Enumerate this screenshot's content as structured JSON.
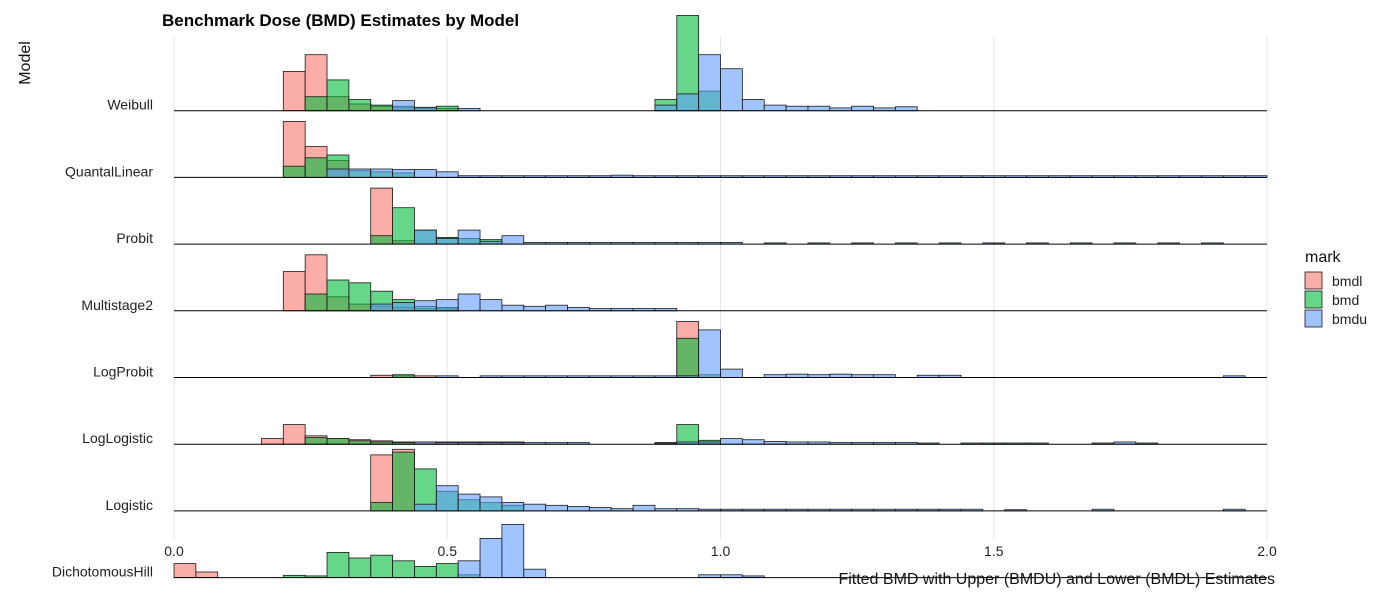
{
  "chart_data": {
    "type": "ridgeline-histogram",
    "title": "Benchmark Dose (BMD) Estimates by Model",
    "xlabel": "Fitted BMD with Upper (BMDU) and Lower (BMDL) Estimates",
    "ylabel": "Model",
    "xlim": [
      0.0,
      2.0
    ],
    "x_ticks": [
      "0.0",
      "0.5",
      "1.0",
      "1.5",
      "2.0"
    ],
    "x_tick_values": [
      0.0,
      0.5,
      1.0,
      1.5,
      2.0
    ],
    "grid": true,
    "legend": {
      "title": "mark",
      "placement": "right",
      "entries": [
        {
          "key": "bmdl",
          "label": "bmdl",
          "color": "#F8766D"
        },
        {
          "key": "bmd",
          "label": "bmd",
          "color": "#00BA38"
        },
        {
          "key": "bmdu",
          "label": "bmdu",
          "color": "#619CFF"
        }
      ]
    },
    "bin_width": 0.04,
    "bin_start": 0.0,
    "categories": [
      "Weibull",
      "QuantalLinear",
      "Probit",
      "Multistage2",
      "LogProbit",
      "LogLogistic",
      "Logistic",
      "DichotomousHill"
    ],
    "series": [
      {
        "model": "Weibull",
        "bmdl": [
          [
            0.2,
            0.7
          ],
          [
            0.24,
            1.0
          ],
          [
            0.28,
            0.25
          ],
          [
            0.32,
            0.12
          ],
          [
            0.36,
            0.08
          ],
          [
            0.4,
            0.06
          ],
          [
            0.44,
            0.04
          ],
          [
            0.48,
            0.04
          ]
        ],
        "bmd": [
          [
            0.24,
            0.25
          ],
          [
            0.28,
            0.55
          ],
          [
            0.32,
            0.2
          ],
          [
            0.36,
            0.1
          ],
          [
            0.4,
            0.08
          ],
          [
            0.44,
            0.06
          ],
          [
            0.48,
            0.08
          ],
          [
            0.88,
            0.2
          ],
          [
            0.92,
            1.7
          ],
          [
            0.96,
            0.35
          ]
        ],
        "bmdu": [
          [
            0.4,
            0.18
          ],
          [
            0.44,
            0.06
          ],
          [
            0.52,
            0.04
          ],
          [
            0.88,
            0.1
          ],
          [
            0.92,
            0.3
          ],
          [
            0.96,
            1.0
          ],
          [
            1.0,
            0.75
          ],
          [
            1.04,
            0.2
          ],
          [
            1.08,
            0.1
          ],
          [
            1.12,
            0.08
          ],
          [
            1.16,
            0.08
          ],
          [
            1.2,
            0.05
          ],
          [
            1.24,
            0.08
          ],
          [
            1.28,
            0.05
          ],
          [
            1.32,
            0.07
          ]
        ]
      },
      {
        "model": "QuantalLinear",
        "bmdl": [
          [
            0.2,
            1.0
          ],
          [
            0.24,
            0.55
          ],
          [
            0.28,
            0.3
          ]
        ],
        "bmd": [
          [
            0.2,
            0.2
          ],
          [
            0.24,
            0.35
          ],
          [
            0.28,
            0.4
          ],
          [
            0.32,
            0.12
          ],
          [
            0.36,
            0.1
          ],
          [
            0.4,
            0.08
          ]
        ],
        "bmdu": [
          [
            0.28,
            0.15
          ],
          [
            0.32,
            0.15
          ],
          [
            0.36,
            0.15
          ],
          [
            0.4,
            0.14
          ],
          [
            0.44,
            0.14
          ],
          [
            0.48,
            0.1
          ],
          [
            0.52,
            0.03
          ],
          [
            0.56,
            0.03
          ],
          [
            0.6,
            0.03
          ],
          [
            0.64,
            0.03
          ],
          [
            0.68,
            0.03
          ],
          [
            0.72,
            0.03
          ],
          [
            0.76,
            0.03
          ],
          [
            0.8,
            0.04
          ],
          [
            0.84,
            0.03
          ],
          [
            0.88,
            0.03
          ],
          [
            0.92,
            0.03
          ],
          [
            0.96,
            0.03
          ],
          [
            1.0,
            0.03
          ],
          [
            1.04,
            0.03
          ],
          [
            1.08,
            0.03
          ],
          [
            1.12,
            0.03
          ],
          [
            1.16,
            0.03
          ],
          [
            1.2,
            0.03
          ],
          [
            1.24,
            0.03
          ],
          [
            1.28,
            0.03
          ],
          [
            1.32,
            0.03
          ],
          [
            1.36,
            0.03
          ],
          [
            1.4,
            0.03
          ],
          [
            1.44,
            0.03
          ],
          [
            1.48,
            0.03
          ],
          [
            1.52,
            0.03
          ],
          [
            1.56,
            0.03
          ],
          [
            1.6,
            0.03
          ],
          [
            1.64,
            0.03
          ],
          [
            1.68,
            0.03
          ],
          [
            1.72,
            0.03
          ],
          [
            1.76,
            0.03
          ],
          [
            1.8,
            0.03
          ],
          [
            1.84,
            0.03
          ],
          [
            1.88,
            0.03
          ],
          [
            1.92,
            0.03
          ],
          [
            1.96,
            0.03
          ]
        ]
      },
      {
        "model": "Probit",
        "bmdl": [
          [
            0.36,
            1.0
          ],
          [
            0.4,
            0.06
          ]
        ],
        "bmd": [
          [
            0.36,
            0.15
          ],
          [
            0.4,
            0.65
          ],
          [
            0.44,
            0.25
          ],
          [
            0.48,
            0.12
          ],
          [
            0.52,
            0.1
          ],
          [
            0.56,
            0.08
          ]
        ],
        "bmdu": [
          [
            0.44,
            0.25
          ],
          [
            0.48,
            0.1
          ],
          [
            0.52,
            0.25
          ],
          [
            0.56,
            0.05
          ],
          [
            0.6,
            0.15
          ],
          [
            0.64,
            0.03
          ],
          [
            0.68,
            0.03
          ],
          [
            0.72,
            0.03
          ],
          [
            0.76,
            0.03
          ],
          [
            0.8,
            0.03
          ],
          [
            0.84,
            0.03
          ],
          [
            0.88,
            0.03
          ],
          [
            0.92,
            0.03
          ],
          [
            0.96,
            0.03
          ],
          [
            1.0,
            0.03
          ],
          [
            1.08,
            0.02
          ],
          [
            1.16,
            0.02
          ],
          [
            1.24,
            0.02
          ],
          [
            1.32,
            0.02
          ],
          [
            1.4,
            0.02
          ],
          [
            1.48,
            0.02
          ],
          [
            1.56,
            0.02
          ],
          [
            1.64,
            0.02
          ],
          [
            1.72,
            0.02
          ],
          [
            1.8,
            0.02
          ],
          [
            1.88,
            0.02
          ]
        ]
      },
      {
        "model": "Multistage2",
        "bmdl": [
          [
            0.2,
            0.7
          ],
          [
            0.24,
            1.0
          ],
          [
            0.28,
            0.25
          ],
          [
            0.32,
            0.12
          ],
          [
            0.36,
            0.08
          ],
          [
            0.4,
            0.06
          ],
          [
            0.44,
            0.04
          ],
          [
            0.48,
            0.04
          ]
        ],
        "bmd": [
          [
            0.24,
            0.3
          ],
          [
            0.28,
            0.55
          ],
          [
            0.32,
            0.5
          ],
          [
            0.36,
            0.35
          ],
          [
            0.4,
            0.2
          ],
          [
            0.44,
            0.08
          ],
          [
            0.48,
            0.06
          ]
        ],
        "bmdu": [
          [
            0.36,
            0.12
          ],
          [
            0.4,
            0.15
          ],
          [
            0.44,
            0.18
          ],
          [
            0.48,
            0.2
          ],
          [
            0.52,
            0.3
          ],
          [
            0.56,
            0.2
          ],
          [
            0.6,
            0.1
          ],
          [
            0.64,
            0.08
          ],
          [
            0.68,
            0.1
          ],
          [
            0.72,
            0.06
          ],
          [
            0.76,
            0.04
          ],
          [
            0.8,
            0.04
          ],
          [
            0.84,
            0.04
          ],
          [
            0.88,
            0.04
          ]
        ]
      },
      {
        "model": "LogProbit",
        "bmdl": [
          [
            0.36,
            0.04
          ],
          [
            0.4,
            0.03
          ],
          [
            0.44,
            0.03
          ],
          [
            0.92,
            1.0
          ]
        ],
        "bmd": [
          [
            0.4,
            0.05
          ],
          [
            0.92,
            0.7
          ],
          [
            0.96,
            0.05
          ]
        ],
        "bmdu": [
          [
            0.48,
            0.03
          ],
          [
            0.56,
            0.03
          ],
          [
            0.6,
            0.03
          ],
          [
            0.64,
            0.03
          ],
          [
            0.68,
            0.03
          ],
          [
            0.72,
            0.03
          ],
          [
            0.76,
            0.03
          ],
          [
            0.8,
            0.03
          ],
          [
            0.84,
            0.03
          ],
          [
            0.88,
            0.03
          ],
          [
            0.92,
            0.03
          ],
          [
            0.96,
            0.85
          ],
          [
            1.0,
            0.15
          ],
          [
            1.08,
            0.05
          ],
          [
            1.12,
            0.06
          ],
          [
            1.16,
            0.05
          ],
          [
            1.2,
            0.06
          ],
          [
            1.24,
            0.05
          ],
          [
            1.28,
            0.05
          ],
          [
            1.36,
            0.04
          ],
          [
            1.4,
            0.04
          ],
          [
            1.92,
            0.03
          ]
        ]
      },
      {
        "model": "LogLogistic",
        "bmdl": [
          [
            0.16,
            0.1
          ],
          [
            0.2,
            0.35
          ],
          [
            0.24,
            0.15
          ],
          [
            0.28,
            0.1
          ],
          [
            0.32,
            0.08
          ],
          [
            0.36,
            0.06
          ],
          [
            0.4,
            0.04
          ],
          [
            0.44,
            0.04
          ],
          [
            0.48,
            0.04
          ],
          [
            0.52,
            0.04
          ],
          [
            0.56,
            0.04
          ],
          [
            0.6,
            0.04
          ]
        ],
        "bmd": [
          [
            0.24,
            0.12
          ],
          [
            0.28,
            0.1
          ],
          [
            0.32,
            0.06
          ],
          [
            0.36,
            0.04
          ],
          [
            0.4,
            0.03
          ],
          [
            0.88,
            0.03
          ],
          [
            0.92,
            0.35
          ],
          [
            0.96,
            0.07
          ]
        ],
        "bmdu": [
          [
            0.44,
            0.04
          ],
          [
            0.48,
            0.03
          ],
          [
            0.52,
            0.03
          ],
          [
            0.56,
            0.03
          ],
          [
            0.6,
            0.03
          ],
          [
            0.64,
            0.03
          ],
          [
            0.68,
            0.03
          ],
          [
            0.72,
            0.03
          ],
          [
            0.88,
            0.02
          ],
          [
            0.92,
            0.04
          ],
          [
            0.96,
            0.04
          ],
          [
            1.0,
            0.1
          ],
          [
            1.04,
            0.08
          ],
          [
            1.08,
            0.05
          ],
          [
            1.12,
            0.04
          ],
          [
            1.16,
            0.04
          ],
          [
            1.2,
            0.03
          ],
          [
            1.24,
            0.03
          ],
          [
            1.28,
            0.03
          ],
          [
            1.32,
            0.03
          ],
          [
            1.36,
            0.02
          ],
          [
            1.44,
            0.02
          ],
          [
            1.48,
            0.02
          ],
          [
            1.52,
            0.02
          ],
          [
            1.56,
            0.02
          ],
          [
            1.68,
            0.02
          ],
          [
            1.72,
            0.04
          ],
          [
            1.76,
            0.02
          ]
        ]
      },
      {
        "model": "Logistic",
        "bmdl": [
          [
            0.36,
            1.0
          ],
          [
            0.4,
            1.1
          ]
        ],
        "bmd": [
          [
            0.36,
            0.15
          ],
          [
            0.4,
            1.05
          ],
          [
            0.44,
            0.75
          ],
          [
            0.48,
            0.35
          ],
          [
            0.52,
            0.2
          ],
          [
            0.56,
            0.15
          ],
          [
            0.6,
            0.1
          ]
        ],
        "bmdu": [
          [
            0.44,
            0.12
          ],
          [
            0.48,
            0.45
          ],
          [
            0.52,
            0.3
          ],
          [
            0.56,
            0.25
          ],
          [
            0.6,
            0.15
          ],
          [
            0.64,
            0.12
          ],
          [
            0.68,
            0.1
          ],
          [
            0.72,
            0.08
          ],
          [
            0.76,
            0.06
          ],
          [
            0.8,
            0.04
          ],
          [
            0.84,
            0.1
          ],
          [
            0.88,
            0.04
          ],
          [
            0.92,
            0.04
          ],
          [
            0.96,
            0.03
          ],
          [
            1.0,
            0.03
          ],
          [
            1.04,
            0.03
          ],
          [
            1.08,
            0.03
          ],
          [
            1.12,
            0.03
          ],
          [
            1.16,
            0.03
          ],
          [
            1.2,
            0.03
          ],
          [
            1.24,
            0.03
          ],
          [
            1.28,
            0.03
          ],
          [
            1.32,
            0.03
          ],
          [
            1.36,
            0.03
          ],
          [
            1.4,
            0.03
          ],
          [
            1.44,
            0.03
          ],
          [
            1.52,
            0.02
          ],
          [
            1.68,
            0.03
          ],
          [
            1.92,
            0.03
          ]
        ]
      },
      {
        "model": "DichotomousHill",
        "bmdl": [
          [
            0.0,
            0.25
          ],
          [
            0.04,
            0.1
          ]
        ],
        "bmd": [
          [
            0.2,
            0.04
          ],
          [
            0.24,
            0.03
          ],
          [
            0.28,
            0.45
          ],
          [
            0.32,
            0.35
          ],
          [
            0.36,
            0.4
          ],
          [
            0.4,
            0.3
          ],
          [
            0.44,
            0.2
          ],
          [
            0.48,
            0.25
          ],
          [
            0.52,
            0.05
          ]
        ],
        "bmdu": [
          [
            0.52,
            0.3
          ],
          [
            0.56,
            0.7
          ],
          [
            0.6,
            0.95
          ],
          [
            0.64,
            0.15
          ],
          [
            0.96,
            0.05
          ],
          [
            1.0,
            0.05
          ],
          [
            1.04,
            0.03
          ]
        ]
      }
    ]
  }
}
